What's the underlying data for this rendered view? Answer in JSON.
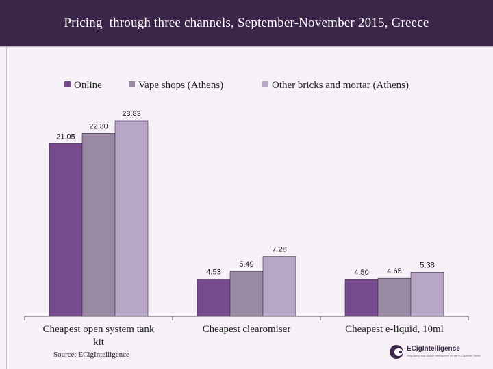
{
  "header": {
    "title": "Pricing  through three channels, September-November 2015, Greece"
  },
  "source": "Source: ECigIntelligence",
  "logo": {
    "brand": "ECigIntelligence",
    "tagline": "Regulatory and Market Intelligence for the e-Cigarette Sector"
  },
  "colors": {
    "online": "#764a8c",
    "vape_shops": "#9989a3",
    "other": "#b8a7c6",
    "header": "#3b2548"
  },
  "chart_data": {
    "type": "bar",
    "title": "Pricing  through three channels, September-November 2015, Greece",
    "categories": [
      [
        "Cheapest open system tank",
        "kit"
      ],
      [
        "Cheapest clearomiser"
      ],
      [
        "Cheapest e-liquid, 10ml"
      ]
    ],
    "series": [
      {
        "name": "Online",
        "color": "#764a8c",
        "values": [
          21.05,
          4.53,
          4.5
        ],
        "labels": [
          "21.05",
          "4.53",
          "4.50"
        ]
      },
      {
        "name": "Vape shops (Athens)",
        "color": "#9989a3",
        "values": [
          22.3,
          5.49,
          4.65
        ],
        "labels": [
          "22.30",
          "5.49",
          "4.65"
        ]
      },
      {
        "name": "Other bricks and mortar (Athens)",
        "color": "#b8a7c6",
        "values": [
          23.83,
          7.28,
          5.38
        ],
        "labels": [
          "23.83",
          "7.28",
          "5.38"
        ]
      }
    ],
    "ylim": [
      0,
      23.83
    ],
    "legend_position": "top",
    "grid": false
  }
}
